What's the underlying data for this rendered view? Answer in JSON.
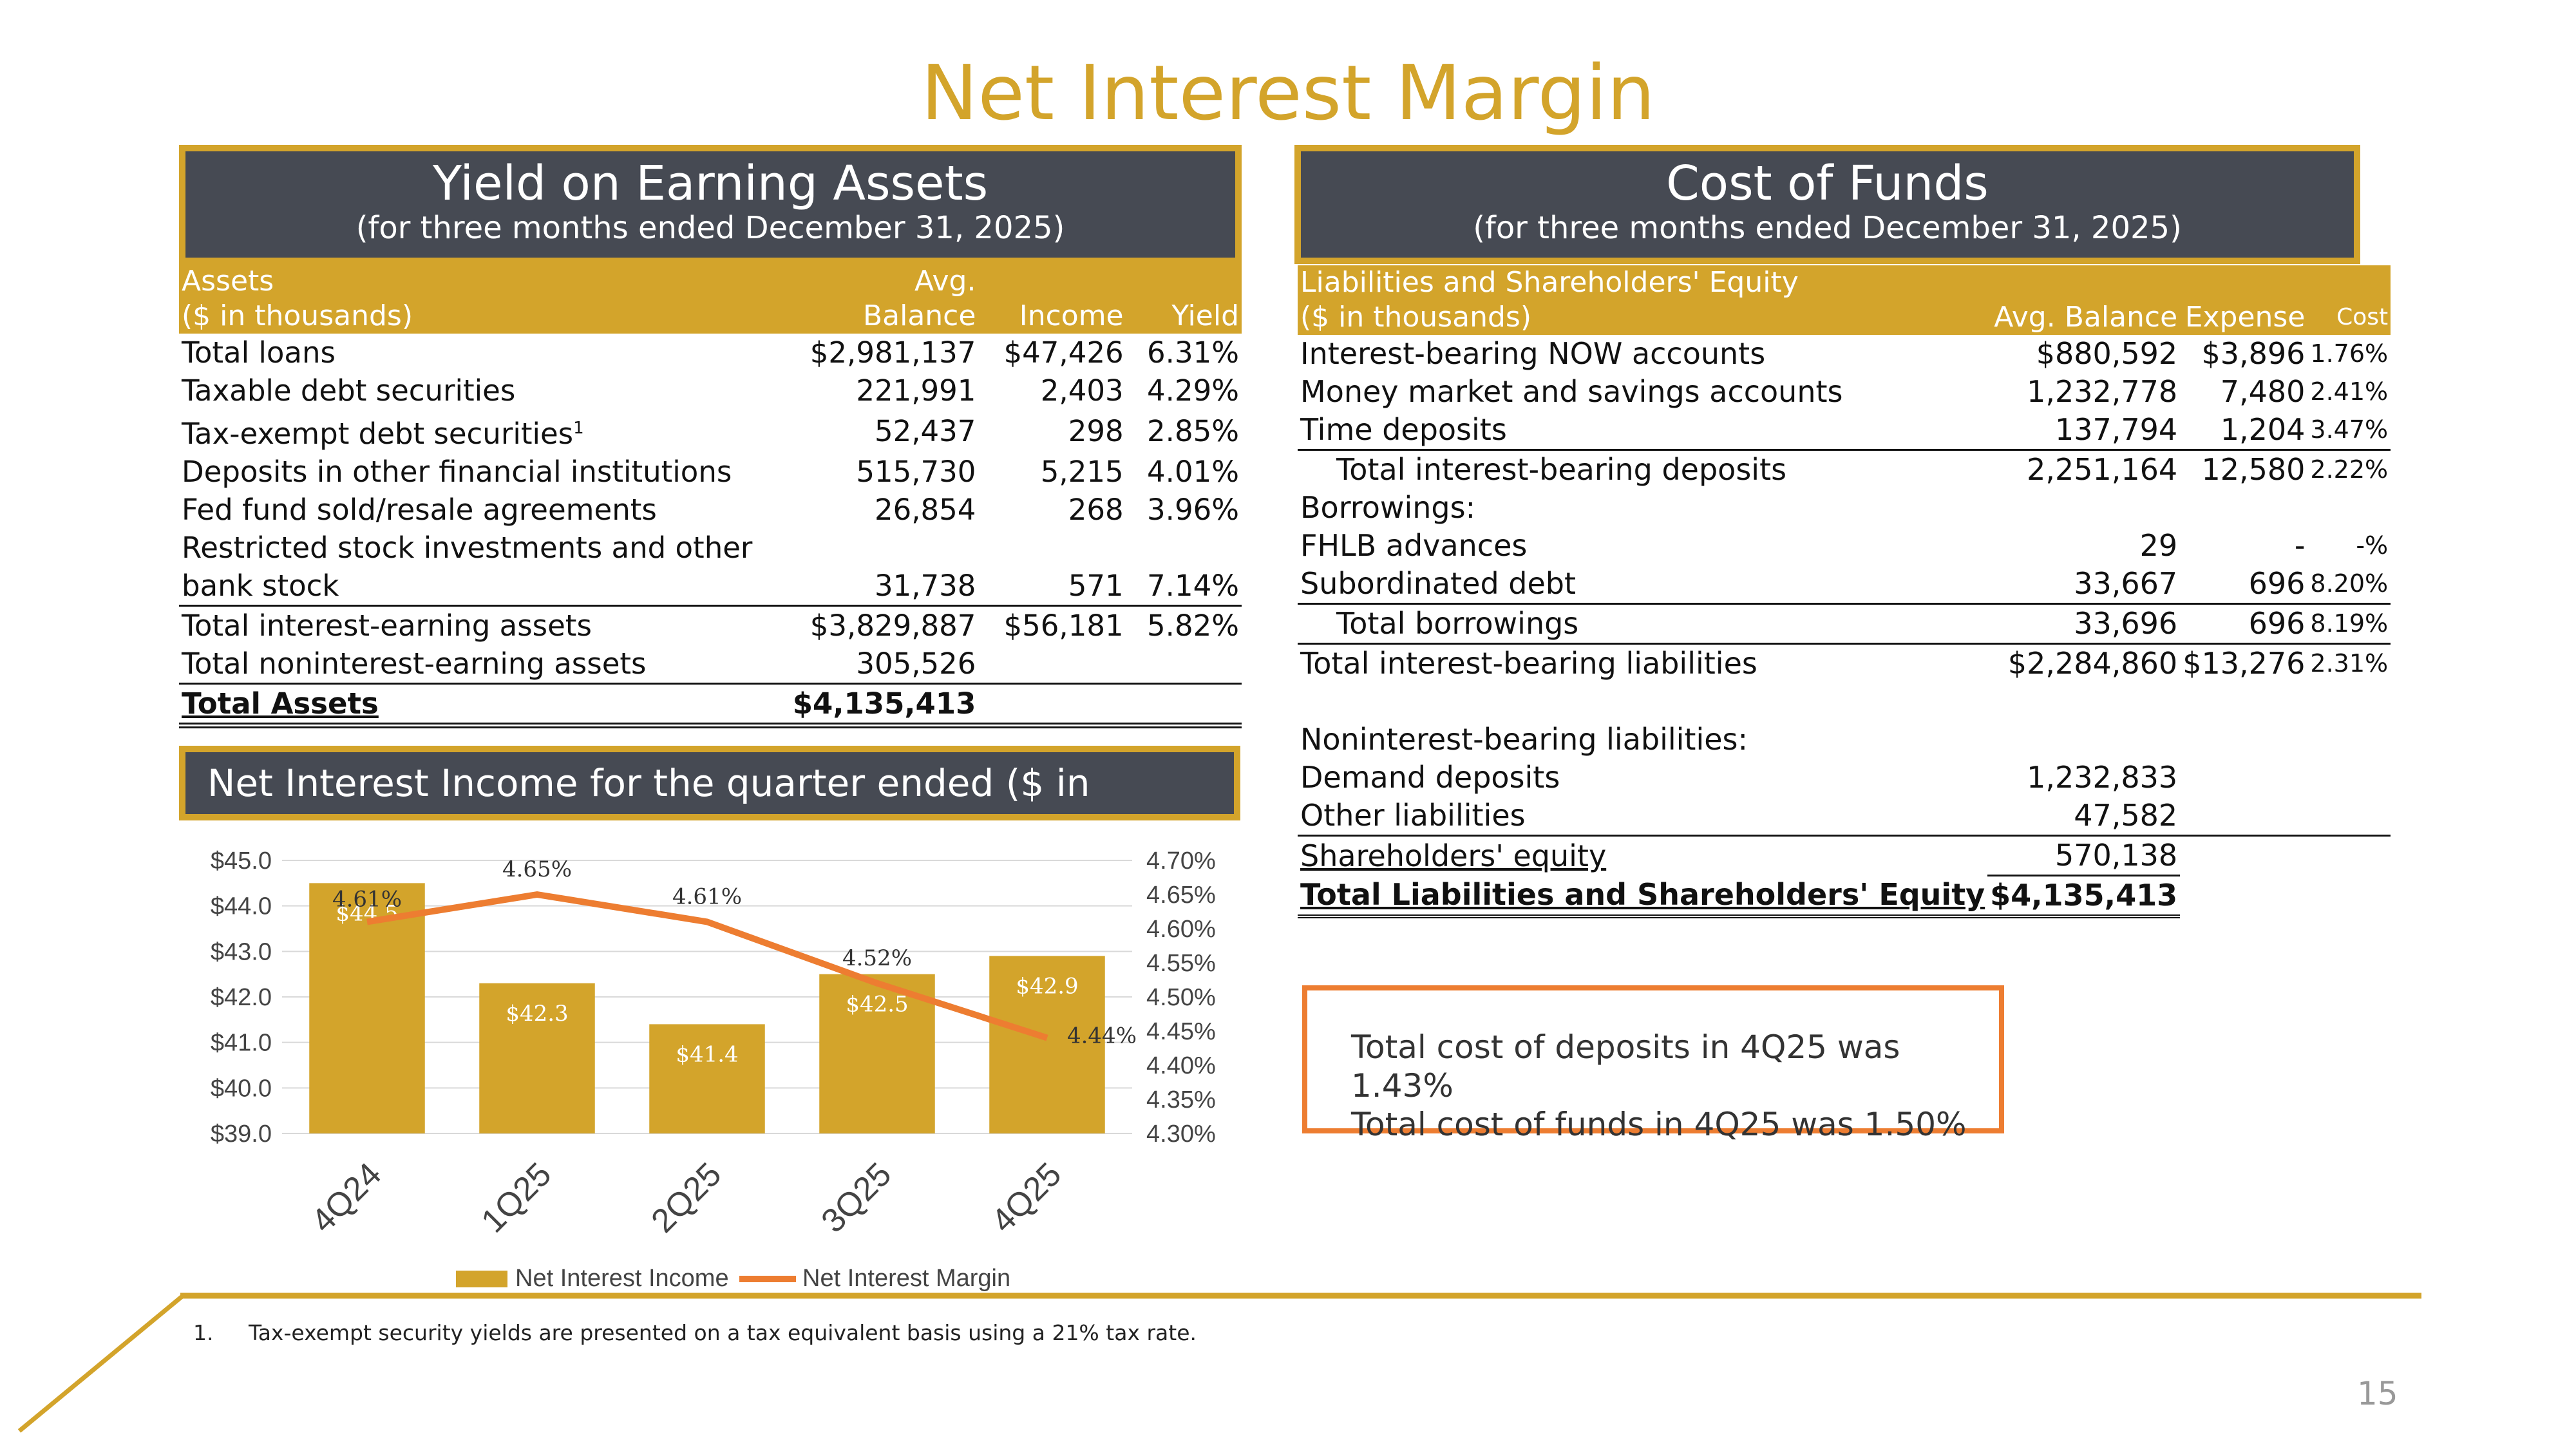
{
  "title": "Net Interest Margin",
  "yield_panel": {
    "title": "Yield on Earning Assets",
    "subtitle": "(for three months ended December 31, 2025)",
    "header": {
      "col1_line1": "Assets",
      "col1_line2": "($ in thousands)",
      "col2_line1": "Avg.",
      "col2_line2": "Balance",
      "col3": "Income",
      "col4": "Yield"
    },
    "rows": [
      {
        "label": "Total loans",
        "balance": "$2,981,137",
        "income": "$47,426",
        "yield": "6.31%"
      },
      {
        "label": "Taxable debt securities",
        "balance": "221,991",
        "income": "2,403",
        "yield": "4.29%"
      },
      {
        "label": "Tax-exempt debt securities",
        "sup": "1",
        "balance": "52,437",
        "income": "298",
        "yield": "2.85%"
      },
      {
        "label": "Deposits in other financial institutions",
        "balance": "515,730",
        "income": "5,215",
        "yield": "4.01%"
      },
      {
        "label": "Fed fund sold/resale agreements",
        "balance": "26,854",
        "income": "268",
        "yield": "3.96%"
      },
      {
        "label_line1": "Restricted stock investments and other",
        "label_line2": "bank stock",
        "balance": "31,738",
        "income": "571",
        "yield": "7.14%"
      },
      {
        "label": "Total interest-earning assets",
        "balance": "$3,829,887",
        "income": "$56,181",
        "yield": "5.82%"
      },
      {
        "label": "Total noninterest-earning assets",
        "balance": "305,526"
      },
      {
        "label": "Total  Assets",
        "balance": "$4,135,413"
      }
    ]
  },
  "cost_panel": {
    "title": "Cost of Funds",
    "subtitle": "(for three months ended December 31, 2025)",
    "header": {
      "col1_line1": "Liabilities and Shareholders' Equity",
      "col1_line2": "($ in thousands)",
      "col2": "Avg. Balance",
      "col3": "Expense",
      "col4": "Cost"
    },
    "rows": [
      {
        "label": "Interest-bearing NOW accounts",
        "balance": "$880,592",
        "expense": "$3,896",
        "cost": "1.76%"
      },
      {
        "label": "Money market and savings accounts",
        "balance": "1,232,778",
        "expense": "7,480",
        "cost": "2.41%"
      },
      {
        "label": "Time deposits",
        "balance": "137,794",
        "expense": "1,204",
        "cost": "3.47%"
      },
      {
        "label": "Total interest-bearing deposits",
        "balance": "2,251,164",
        "expense": "12,580",
        "cost": "2.22%"
      },
      {
        "label": "Borrowings:"
      },
      {
        "label": "FHLB advances",
        "balance": "29",
        "expense": "-",
        "cost": "-%"
      },
      {
        "label": "Subordinated debt",
        "balance": "33,667",
        "expense": "696",
        "cost": "8.20%"
      },
      {
        "label": "Total borrowings",
        "balance": "33,696",
        "expense": "696",
        "cost": "8.19%"
      },
      {
        "label": "Total interest-bearing liabilities",
        "balance": "$2,284,860",
        "expense": "$13,276",
        "cost": "2.31%"
      },
      {
        "label": "Noninterest-bearing liabilities:"
      },
      {
        "label": "Demand deposits",
        "balance": "1,232,833"
      },
      {
        "label": "Other liabilities",
        "balance": "47,582"
      },
      {
        "label": "Shareholders' equity",
        "balance": "570,138"
      },
      {
        "label": "Total Liabilities and Shareholders' Equity",
        "balance": "$4,135,413"
      }
    ]
  },
  "chart_panel": {
    "title": "Net Interest Income for the quarter ended ($ in millions)"
  },
  "callout": {
    "line1": "Total cost of deposits in 4Q25 was 1.43%",
    "line2": "Total cost of funds in 4Q25 was 1.50%"
  },
  "footnote": {
    "number": "1.",
    "text": "Tax-exempt security yields are presented on a tax equivalent basis using a 21% tax rate."
  },
  "page_number": "15",
  "colors": {
    "gold": "#D3A42B",
    "slate": "#464A53",
    "orange": "#ED7D31"
  },
  "chart_data": {
    "type": "bar",
    "title": "Net Interest Income for the quarter ended ($ in millions)",
    "categories": [
      "4Q24",
      "1Q25",
      "2Q25",
      "3Q25",
      "4Q25"
    ],
    "series": [
      {
        "name": "Net Interest Income",
        "type": "bar",
        "axis": "left",
        "values": [
          44.5,
          42.3,
          41.4,
          42.5,
          42.9
        ],
        "labels": [
          "$44.5",
          "$42.3",
          "$41.4",
          "$42.5",
          "$42.9"
        ]
      },
      {
        "name": "Net Interest Margin",
        "type": "line",
        "axis": "right",
        "values": [
          4.61,
          4.65,
          4.61,
          4.52,
          4.44
        ],
        "labels": [
          "4.61%",
          "4.65%",
          "4.61%",
          "4.52%",
          "4.44%"
        ]
      }
    ],
    "y_left": {
      "min": 39.0,
      "max": 45.0,
      "ticks": [
        "$45.0",
        "$44.0",
        "$43.0",
        "$42.0",
        "$41.0",
        "$40.0",
        "$39.0"
      ]
    },
    "y_right": {
      "min": 4.3,
      "max": 4.7,
      "ticks": [
        "4.70%",
        "4.65%",
        "4.60%",
        "4.55%",
        "4.50%",
        "4.45%",
        "4.40%",
        "4.35%",
        "4.30%"
      ]
    },
    "legend": "bottom",
    "grid": true
  }
}
